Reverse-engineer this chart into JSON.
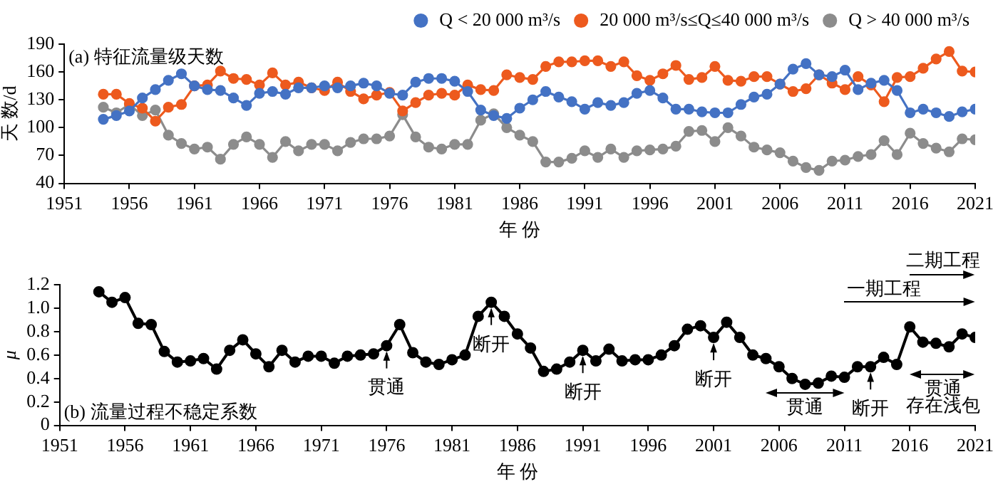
{
  "chart_data": [
    {
      "type": "line",
      "annotations": [
        "(a) 特征流量级天数"
      ],
      "xlabel": "年 份",
      "ylabel": "天 数/d",
      "x": [
        1954,
        1955,
        1956,
        1957,
        1958,
        1959,
        1960,
        1961,
        1962,
        1963,
        1964,
        1965,
        1966,
        1967,
        1968,
        1969,
        1970,
        1971,
        1972,
        1973,
        1974,
        1975,
        1976,
        1977,
        1978,
        1979,
        1980,
        1981,
        1982,
        1983,
        1984,
        1985,
        1986,
        1987,
        1988,
        1989,
        1990,
        1991,
        1992,
        1993,
        1994,
        1995,
        1996,
        1997,
        1998,
        1999,
        2000,
        2001,
        2002,
        2003,
        2004,
        2005,
        2006,
        2007,
        2008,
        2009,
        2010,
        2011,
        2012,
        2013,
        2014,
        2015,
        2016,
        2017,
        2018,
        2019,
        2020,
        2021
      ],
      "xlim": [
        1951,
        2021
      ],
      "xticks": [
        1951,
        1956,
        1961,
        1966,
        1971,
        1976,
        1981,
        1986,
        1991,
        1996,
        2001,
        2006,
        2011,
        2016,
        2021
      ],
      "ylim": [
        40,
        190
      ],
      "yticks": [
        40,
        70,
        100,
        130,
        160,
        190
      ],
      "legend": "top right",
      "marker": "circle",
      "series": [
        {
          "name": "Q < 20 000 m³/s",
          "color": "#4472c4",
          "values": [
            109,
            113,
            118,
            132,
            141,
            151,
            158,
            145,
            141,
            140,
            132,
            124,
            137,
            139,
            136,
            143,
            143,
            145,
            143,
            145,
            148,
            145,
            137,
            135,
            149,
            153,
            153,
            150,
            139,
            119,
            113,
            110,
            121,
            130,
            139,
            133,
            128,
            120,
            127,
            124,
            127,
            137,
            140,
            132,
            120,
            120,
            117,
            116,
            116,
            125,
            133,
            136,
            147,
            163,
            169,
            157,
            155,
            162,
            141,
            148,
            151,
            140,
            116,
            120,
            116,
            112,
            117,
            120
          ]
        },
        {
          "name": "20 000 m³/s≤Q≤40 000 m³/s",
          "color": "#ed5a1e",
          "values": [
            136,
            136,
            126,
            121,
            107,
            122,
            125,
            145,
            146,
            161,
            153,
            152,
            146,
            159,
            146,
            149,
            143,
            140,
            149,
            139,
            131,
            135,
            138,
            118,
            127,
            135,
            137,
            135,
            146,
            141,
            140,
            157,
            154,
            152,
            166,
            171,
            171,
            172,
            172,
            166,
            171,
            156,
            151,
            158,
            167,
            152,
            154,
            166,
            151,
            150,
            155,
            155,
            147,
            139,
            142,
            157,
            148,
            141,
            155,
            146,
            128,
            154,
            155,
            164,
            174,
            182,
            161,
            160
          ]
        },
        {
          "name": "Q > 40 000 m³/s",
          "color": "#8c8c8c",
          "values": [
            122,
            116,
            125,
            113,
            119,
            92,
            83,
            77,
            79,
            66,
            82,
            90,
            82,
            68,
            85,
            75,
            82,
            82,
            75,
            84,
            88,
            88,
            91,
            114,
            90,
            79,
            77,
            82,
            82,
            108,
            115,
            100,
            92,
            85,
            63,
            63,
            67,
            75,
            68,
            77,
            68,
            75,
            76,
            77,
            80,
            96,
            97,
            85,
            100,
            91,
            79,
            76,
            73,
            64,
            57,
            54,
            64,
            65,
            69,
            71,
            86,
            71,
            94,
            83,
            78,
            74,
            88,
            87
          ]
        }
      ]
    },
    {
      "type": "line",
      "annotations": [
        "(b) 流量过程不稳定系数",
        {
          "text": "贯通",
          "x": 1976,
          "y": 0.68
        },
        {
          "text": "断开",
          "x": 1984,
          "y": 1.05
        },
        {
          "text": "断开",
          "x": 1991,
          "y": 0.64
        },
        {
          "text": "断开",
          "x": 2001,
          "y": 0.75
        },
        {
          "text": "断开",
          "x": 2013,
          "y": 0.5
        },
        "二期工程",
        "一期工程",
        "贯通",
        "贯通",
        "存在浅包"
      ],
      "xlabel": "年 份",
      "ylabel": "μ",
      "x": [
        1954,
        1955,
        1956,
        1957,
        1958,
        1959,
        1960,
        1961,
        1962,
        1963,
        1964,
        1965,
        1966,
        1967,
        1968,
        1969,
        1970,
        1971,
        1972,
        1973,
        1974,
        1975,
        1976,
        1977,
        1978,
        1979,
        1980,
        1981,
        1982,
        1983,
        1984,
        1985,
        1986,
        1987,
        1988,
        1989,
        1990,
        1991,
        1992,
        1993,
        1994,
        1995,
        1996,
        1997,
        1998,
        1999,
        2000,
        2001,
        2002,
        2003,
        2004,
        2005,
        2006,
        2007,
        2008,
        2009,
        2010,
        2011,
        2012,
        2013,
        2014,
        2015,
        2016,
        2017,
        2018,
        2019,
        2020,
        2021
      ],
      "xlim": [
        1951,
        2021
      ],
      "xticks": [
        1951,
        1956,
        1961,
        1966,
        1971,
        1976,
        1981,
        1986,
        1991,
        1996,
        2001,
        2006,
        2011,
        2016,
        2021
      ],
      "ylim": [
        0,
        1.2
      ],
      "yticks": [
        0,
        0.2,
        0.4,
        0.6,
        0.8,
        {
          "value": 1,
          "label": "1.0"
        },
        1.2
      ],
      "marker": "circle",
      "series": [
        {
          "color": "#000000",
          "values": [
            1.14,
            1.05,
            1.09,
            0.87,
            0.86,
            0.63,
            0.54,
            0.55,
            0.57,
            0.48,
            0.64,
            0.73,
            0.61,
            0.5,
            0.64,
            0.54,
            0.59,
            0.59,
            0.53,
            0.59,
            0.6,
            0.61,
            0.68,
            0.86,
            0.62,
            0.54,
            0.52,
            0.56,
            0.6,
            0.93,
            1.05,
            0.93,
            0.78,
            0.66,
            0.46,
            0.48,
            0.54,
            0.64,
            0.55,
            0.65,
            0.55,
            0.56,
            0.56,
            0.6,
            0.68,
            0.82,
            0.85,
            0.75,
            0.88,
            0.75,
            0.6,
            0.57,
            0.5,
            0.4,
            0.35,
            0.36,
            0.42,
            0.41,
            0.5,
            0.5,
            0.58,
            0.52,
            0.84,
            0.71,
            0.7,
            0.67,
            0.78,
            0.75
          ]
        }
      ]
    }
  ]
}
